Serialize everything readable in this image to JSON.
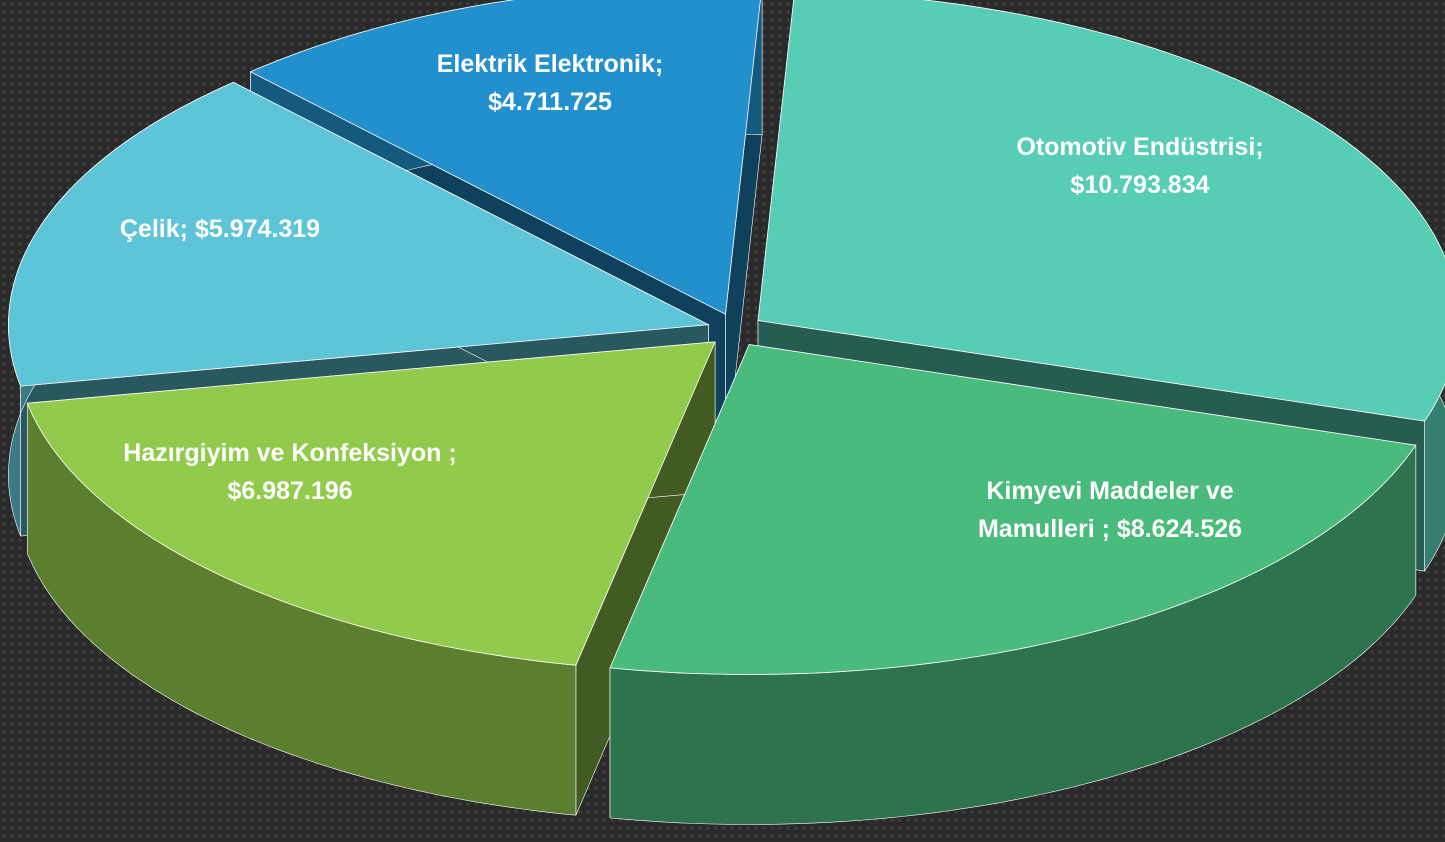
{
  "chart_data": {
    "type": "pie",
    "categories": [
      "Otomotiv Endüstrisi;",
      "Kimyevi Maddeler ve Mamulleri ;",
      "Hazırgiyim ve Konfeksiyon ;",
      "Çelik;",
      "Elektrik Elektronik;"
    ],
    "values": [
      10793834,
      8624526,
      6987196,
      5974319,
      4711725
    ],
    "value_labels": [
      "$10.793.834",
      "$8.624.526",
      "$6.987.196",
      "$5.974.319",
      "$4.711.725"
    ],
    "colors": [
      "#56cdb4",
      "#48bb7d",
      "#92cb4c",
      "#5ec4d8",
      "#2290cd"
    ]
  }
}
